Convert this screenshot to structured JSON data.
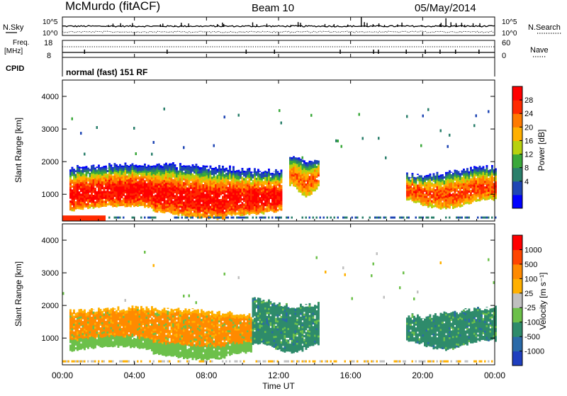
{
  "header": {
    "station": "McMurdo (fitACF)",
    "beam": "Beam 10",
    "date": "05/May/2014"
  },
  "noise_panel": {
    "left_label": "N.Sky",
    "right_label": "N.Search",
    "left_ticks": [
      "10^5",
      "10^0"
    ],
    "right_ticks": [
      "10^5",
      "10^0"
    ]
  },
  "freq_panel": {
    "left_label_1": "Freq.",
    "left_label_2": "[MHz]",
    "left_ticks": [
      "18",
      "8"
    ],
    "right_label": "Nave",
    "right_ticks": [
      "60",
      "0"
    ]
  },
  "cpid_panel": {
    "label": "CPID",
    "mode": "normal (fast) 151 RF"
  },
  "power_panel": {
    "ylabel": "Slant Range [km]",
    "yticks": [
      "4000",
      "3000",
      "2000",
      "1000"
    ],
    "colorbar_label": "Power [dB]",
    "colorbar_ticks": [
      "28",
      "24",
      "20",
      "16",
      "12",
      "8",
      "4"
    ],
    "colors": [
      "#0000ff",
      "#1f46b4",
      "#2a7f6b",
      "#3aa83a",
      "#b7d10e",
      "#ffb000",
      "#ff7a00",
      "#ff2a00",
      "#ff0000"
    ]
  },
  "velocity_panel": {
    "ylabel": "Slant Range [km]",
    "yticks": [
      "4000",
      "3000",
      "2000",
      "1000"
    ],
    "colorbar_label": "Velocity [m s⁻¹]",
    "colorbar_ticks": [
      "1000",
      "500",
      "100",
      "25",
      "-25",
      "-100",
      "-500",
      "-1000"
    ],
    "colors": [
      "#1f3fbf",
      "#2a6aa8",
      "#2e8b6b",
      "#6cc04a",
      "#c0c0c0",
      "#ffb000",
      "#ff8a00",
      "#ff4500",
      "#ff0000"
    ]
  },
  "xaxis": {
    "ticks": [
      "00:00",
      "04:00",
      "08:00",
      "12:00",
      "16:00",
      "20:00",
      "00:00"
    ],
    "label": "Time UT"
  },
  "chart_data": [
    {
      "type": "heatmap",
      "name": "Power",
      "x_range_hours": [
        0,
        24
      ],
      "y_range_km": [
        180,
        4500
      ],
      "colorbar_range": [
        0,
        32
      ],
      "bands": [
        {
          "t_start": 0.3,
          "t_end": 12.1,
          "r_low": 500,
          "r_high": 1800,
          "peak_db": 28
        },
        {
          "t_start": 12.5,
          "t_end": 14.2,
          "r_low": 1100,
          "r_high": 2100,
          "peak_db": 22
        },
        {
          "t_start": 19.0,
          "t_end": 24.0,
          "r_low": 700,
          "r_high": 1700,
          "peak_db": 24
        }
      ]
    },
    {
      "type": "heatmap",
      "name": "Velocity",
      "x_range_hours": [
        0,
        24
      ],
      "y_range_km": [
        180,
        4500
      ],
      "colorbar_range": [
        -1000,
        1000
      ],
      "bands": [
        {
          "t_start": 0.3,
          "t_end": 10.5,
          "r_low": 600,
          "r_high": 1800,
          "v": 100
        },
        {
          "t_start": 10.5,
          "t_end": 14.2,
          "r_low": 700,
          "r_high": 2100,
          "v": -100
        },
        {
          "t_start": 19.0,
          "t_end": 24.0,
          "r_low": 800,
          "r_high": 1800,
          "v": -100
        }
      ]
    }
  ]
}
